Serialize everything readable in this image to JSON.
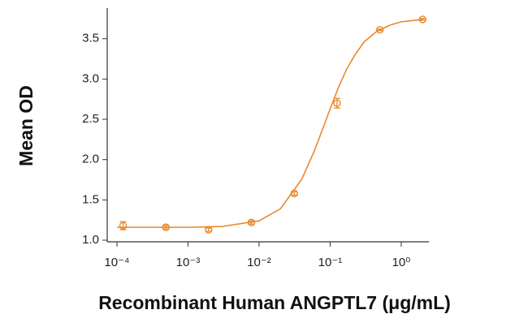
{
  "chart_data": {
    "type": "scatter",
    "x_label": "Recombinant Human ANGPTL7 (μg/mL)",
    "y_label": "Mean OD",
    "xscale": "log",
    "xlim": [
      7.3e-05,
      2.45
    ],
    "ylim": [
      0.98,
      3.88
    ],
    "xticks": [
      {
        "value": 0.0001,
        "label": "10⁻⁴"
      },
      {
        "value": 0.001,
        "label": "10⁻³"
      },
      {
        "value": 0.01,
        "label": "10⁻²"
      },
      {
        "value": 0.1,
        "label": "10⁻¹"
      },
      {
        "value": 1,
        "label": "10⁰"
      }
    ],
    "yticks": [
      {
        "value": 1,
        "label": "1.0"
      },
      1.5,
      {
        "value": 2,
        "label": "2.0"
      },
      2.5,
      {
        "value": 3,
        "label": "3.0"
      },
      3.5
    ],
    "color": "#e8892b",
    "series": [
      {
        "color": "#e8892b",
        "x": [
          0.000122,
          0.000488,
          0.00195,
          0.0078,
          0.03125,
          0.125,
          0.5,
          2
        ],
        "values": [
          1.18,
          1.16,
          1.13,
          1.22,
          1.58,
          2.7,
          3.61,
          3.74
        ],
        "errors": [
          0.05,
          0.02,
          0.02,
          0.02,
          0.02,
          0.06,
          0.01,
          0.01
        ]
      }
    ],
    "fit": {
      "color": "#e8892b",
      "x": [
        0.0001,
        0.001,
        0.003,
        0.01,
        0.02,
        0.04,
        0.06,
        0.08,
        0.1,
        0.13,
        0.17,
        0.22,
        0.3,
        0.45,
        0.7,
        1,
        2
      ],
      "values": [
        1.16,
        1.16,
        1.17,
        1.24,
        1.39,
        1.76,
        2.11,
        2.4,
        2.63,
        2.89,
        3.12,
        3.29,
        3.46,
        3.59,
        3.67,
        3.71,
        3.74
      ]
    }
  }
}
